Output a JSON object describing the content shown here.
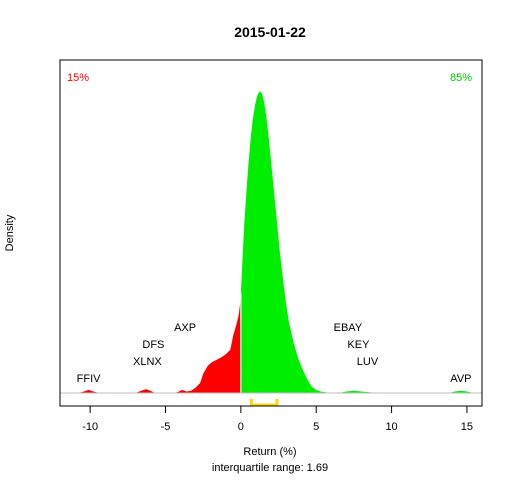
{
  "chart_data": {
    "type": "area",
    "title": "2015-01-22",
    "xlabel": "Return (%)",
    "ylabel": "Density",
    "subtitle": "interquartile range: 1.69",
    "xlim": [
      -12,
      16
    ],
    "x_ticks": [
      -10,
      -5,
      0,
      5,
      10,
      15
    ],
    "x_tick_labels": [
      "-10",
      "-5",
      "0",
      "5",
      "10",
      "15"
    ],
    "ylim": [
      0,
      0.42
    ],
    "grid": false,
    "negative_share": {
      "label": "15%",
      "color": "#ff0000"
    },
    "positive_share": {
      "label": "85%",
      "color": "#00cc00"
    },
    "colors": {
      "negative": "#ff0000",
      "positive": "#00ee00",
      "iqr": "#ffd700",
      "baseline": "#bebebe"
    },
    "series": [
      {
        "x": [
          -11.5,
          -10.8,
          -10.4,
          -10.1,
          -9.8,
          -9.4,
          -9.0,
          -7.0,
          -6.6,
          -6.3,
          -6.0,
          -5.7,
          -5.4,
          -5.0,
          -4.4,
          -4.1,
          -3.9,
          -3.6,
          -3.3,
          -3.0,
          -2.7,
          -2.5,
          -2.2,
          -1.9,
          -1.6,
          -1.3,
          -1.0,
          -0.7,
          -0.5,
          -0.3,
          -0.15,
          -0.05,
          0.0,
          0.0,
          0.1,
          0.2,
          0.35,
          0.5,
          0.65,
          0.8,
          0.95,
          1.1,
          1.25,
          1.4,
          1.55,
          1.7,
          1.85,
          2.0,
          2.2,
          2.4,
          2.6,
          2.8,
          3.0,
          3.2,
          3.5,
          3.8,
          4.1,
          4.4,
          4.7,
          5.0,
          5.3,
          5.6,
          6.0,
          6.5,
          7.0,
          7.5,
          8.0,
          8.5,
          9.0,
          9.5,
          12.0,
          13.8,
          14.2,
          14.6,
          15.0,
          15.4,
          16.0
        ],
        "density": [
          0,
          0,
          0.002,
          0.004,
          0.002,
          0,
          0,
          0,
          0.003,
          0.005,
          0.003,
          0,
          0,
          0,
          0,
          0.002,
          0.004,
          0.002,
          0.003,
          0.007,
          0.013,
          0.025,
          0.035,
          0.04,
          0.043,
          0.046,
          0.05,
          0.056,
          0.075,
          0.088,
          0.1,
          0.115,
          0.13,
          0.13,
          0.17,
          0.21,
          0.255,
          0.295,
          0.33,
          0.355,
          0.373,
          0.385,
          0.39,
          0.387,
          0.375,
          0.355,
          0.33,
          0.3,
          0.26,
          0.22,
          0.18,
          0.145,
          0.115,
          0.09,
          0.065,
          0.045,
          0.03,
          0.018,
          0.008,
          0.004,
          0.002,
          0.001,
          0,
          0,
          0.002,
          0.003,
          0.002,
          0.001,
          0,
          0,
          0,
          0,
          0.002,
          0.003,
          0.002,
          0,
          0
        ]
      }
    ],
    "iqr": [
      0.7,
      2.4
    ],
    "annotations": [
      {
        "label": "FFIV",
        "x": -10.1,
        "row": 1
      },
      {
        "label": "XLNX",
        "x": -6.2,
        "row": 2
      },
      {
        "label": "DFS",
        "x": -5.8,
        "row": 3
      },
      {
        "label": "AXP",
        "x": -3.7,
        "row": 4
      },
      {
        "label": "EBAY",
        "x": 7.1,
        "row": 4
      },
      {
        "label": "KEY",
        "x": 7.8,
        "row": 3
      },
      {
        "label": "LUV",
        "x": 8.4,
        "row": 2
      },
      {
        "label": "AVP",
        "x": 14.6,
        "row": 1
      }
    ]
  }
}
